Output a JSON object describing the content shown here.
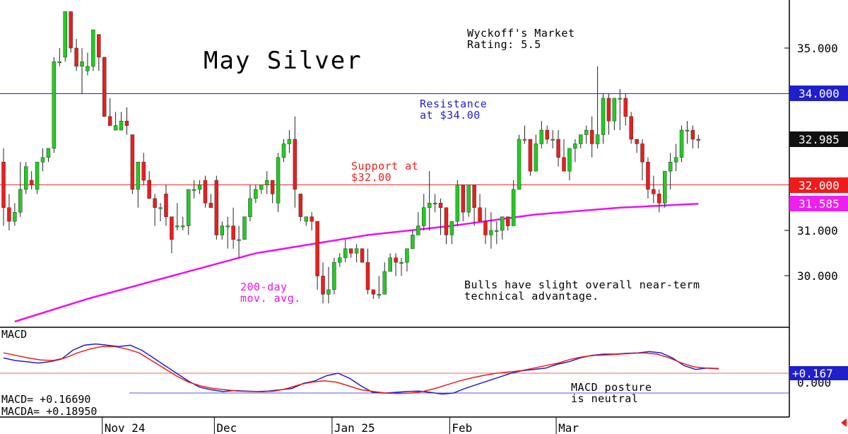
{
  "chart_data": {
    "type": "candlestick",
    "title": "May Silver",
    "rating_text": [
      "Wyckoff's Market",
      "Rating: 5.5"
    ],
    "y_ticks": [
      "35.000",
      "31.000",
      "30.000"
    ],
    "ylim": [
      29.0,
      35.9
    ],
    "x_labels": [
      {
        "label": "Nov 24",
        "index": 18
      },
      {
        "label": "Dec",
        "index": 38
      },
      {
        "label": "Jan 25",
        "index": 59
      },
      {
        "label": "Feb",
        "index": 80
      },
      {
        "label": "Mar",
        "index": 99
      }
    ],
    "levels": [
      {
        "value": 34.0,
        "label": "34.000",
        "color": "#1f1fcc",
        "box_bg": "#1f1fcc",
        "box_fg": "#ffffff"
      },
      {
        "value": 32.0,
        "label": "32.000",
        "color": "#ee3030",
        "box_bg": "#ee1c1c",
        "box_fg": "#ffffff"
      }
    ],
    "last_price": {
      "value": 32.985,
      "label": "32.985",
      "box_bg": "#111111",
      "box_fg": "#ffffff"
    },
    "ma_label_value": {
      "value": 31.585,
      "label": "31.585",
      "box_bg": "#ee20ee",
      "box_fg": "#ffffff"
    },
    "annotations": {
      "resistance": [
        "Resistance",
        "at $34.00"
      ],
      "support": [
        "Support at",
        "$32.00"
      ],
      "moving_average": [
        "200-day",
        "mov. avg."
      ],
      "outlook": [
        "Bulls have slight overall near-term",
        "technical advantage."
      ],
      "macd_posture": [
        "MACD posture",
        "is neutral"
      ]
    },
    "candles": [
      [
        32.5,
        32.8,
        31.1,
        31.5
      ],
      [
        31.5,
        31.8,
        31.0,
        31.2
      ],
      [
        31.2,
        31.6,
        31.1,
        31.4
      ],
      [
        31.4,
        32.5,
        31.3,
        31.9
      ],
      [
        31.9,
        32.5,
        31.8,
        32.4
      ],
      [
        32.1,
        32.3,
        31.9,
        32.0
      ],
      [
        31.9,
        32.5,
        31.8,
        32.5
      ],
      [
        32.5,
        32.8,
        32.3,
        32.6
      ],
      [
        32.6,
        32.8,
        32.5,
        32.8
      ],
      [
        32.8,
        34.8,
        32.7,
        34.7
      ],
      [
        34.7,
        35.0,
        34.6,
        34.7
      ],
      [
        34.8,
        35.8,
        34.7,
        35.8
      ],
      [
        35.8,
        35.8,
        34.9,
        35.0
      ],
      [
        35.0,
        35.2,
        34.5,
        34.6
      ],
      [
        34.6,
        35.0,
        34.0,
        34.7
      ],
      [
        34.5,
        34.9,
        34.4,
        34.6
      ],
      [
        34.6,
        35.4,
        34.5,
        35.4
      ],
      [
        35.3,
        35.3,
        34.5,
        34.8
      ],
      [
        34.8,
        34.8,
        33.5,
        33.5
      ],
      [
        33.5,
        33.9,
        33.3,
        33.3
      ],
      [
        33.2,
        33.6,
        33.2,
        33.3
      ],
      [
        33.2,
        33.6,
        33.2,
        33.4
      ],
      [
        33.4,
        33.7,
        33.1,
        33.3
      ],
      [
        33.1,
        33.1,
        31.8,
        31.9
      ],
      [
        31.9,
        32.5,
        31.5,
        32.5
      ],
      [
        32.5,
        32.7,
        32.0,
        32.1
      ],
      [
        32.1,
        32.3,
        31.7,
        31.7
      ],
      [
        31.7,
        31.8,
        31.1,
        31.5
      ],
      [
        31.5,
        31.6,
        31.2,
        31.5
      ],
      [
        31.8,
        32.0,
        31.1,
        31.3
      ],
      [
        31.3,
        31.3,
        30.5,
        30.8
      ],
      [
        31.1,
        31.6,
        31.0,
        31.1
      ],
      [
        31.1,
        31.3,
        31.0,
        31.1
      ],
      [
        31.1,
        31.9,
        30.9,
        31.9
      ],
      [
        31.9,
        32.1,
        31.7,
        31.9
      ],
      [
        31.9,
        32.1,
        31.8,
        32.0
      ],
      [
        32.1,
        32.2,
        31.5,
        31.6
      ],
      [
        31.6,
        31.8,
        31.5,
        31.5
      ],
      [
        32.1,
        32.2,
        30.8,
        30.9
      ],
      [
        30.9,
        31.2,
        30.8,
        31.1
      ],
      [
        31.1,
        31.3,
        30.6,
        31.1
      ],
      [
        31.1,
        31.5,
        30.6,
        30.8
      ],
      [
        30.8,
        31.1,
        30.4,
        30.8
      ],
      [
        30.8,
        31.3,
        30.8,
        31.3
      ],
      [
        31.3,
        32.0,
        31.2,
        31.7
      ],
      [
        31.7,
        32.0,
        31.6,
        31.9
      ],
      [
        31.9,
        32.0,
        31.8,
        32.0
      ],
      [
        32.0,
        32.3,
        31.8,
        32.1
      ],
      [
        32.1,
        32.1,
        31.6,
        31.8
      ],
      [
        31.6,
        32.7,
        31.4,
        32.6
      ],
      [
        32.6,
        33.0,
        32.5,
        32.9
      ],
      [
        32.9,
        33.2,
        32.7,
        33.0
      ],
      [
        33.0,
        33.5,
        31.5,
        31.9
      ],
      [
        31.8,
        31.8,
        31.2,
        31.3
      ],
      [
        31.2,
        31.3,
        31.1,
        31.3
      ],
      [
        31.3,
        31.4,
        31.0,
        31.2
      ],
      [
        31.2,
        31.2,
        29.7,
        30.0
      ],
      [
        30.0,
        30.3,
        29.4,
        29.6
      ],
      [
        29.6,
        30.2,
        29.4,
        29.7
      ],
      [
        29.7,
        30.4,
        29.6,
        30.3
      ],
      [
        30.3,
        30.5,
        30.2,
        30.4
      ],
      [
        30.4,
        30.8,
        30.3,
        30.6
      ],
      [
        30.6,
        30.6,
        30.4,
        30.5
      ],
      [
        30.5,
        30.7,
        30.3,
        30.6
      ],
      [
        30.6,
        30.6,
        30.3,
        30.3
      ],
      [
        30.3,
        30.6,
        29.6,
        29.7
      ],
      [
        29.7,
        29.7,
        29.5,
        29.6
      ],
      [
        29.6,
        30.0,
        29.5,
        29.6
      ],
      [
        29.6,
        30.3,
        29.6,
        30.1
      ],
      [
        30.1,
        30.5,
        30.1,
        30.4
      ],
      [
        30.4,
        30.5,
        30.0,
        30.3
      ],
      [
        30.3,
        30.4,
        30.0,
        30.3
      ],
      [
        30.3,
        30.6,
        30.1,
        30.6
      ],
      [
        30.6,
        31.0,
        30.6,
        30.9
      ],
      [
        30.9,
        31.4,
        30.9,
        31.1
      ],
      [
        31.1,
        31.8,
        31.0,
        31.5
      ],
      [
        31.5,
        32.3,
        31.0,
        31.6
      ],
      [
        31.6,
        31.8,
        31.4,
        31.6
      ],
      [
        31.6,
        31.7,
        30.9,
        31.5
      ],
      [
        31.5,
        31.5,
        30.7,
        30.9
      ]
    ],
    "candles_tail": [
      [
        30.9,
        31.1,
        30.7,
        31.2
      ],
      [
        31.2,
        32.1,
        31.1,
        32.0
      ],
      [
        32.0,
        32.0,
        31.2,
        31.4
      ],
      [
        31.4,
        32.0,
        31.3,
        32.0
      ],
      [
        32.0,
        32.0,
        31.1,
        31.5
      ],
      [
        31.5,
        31.8,
        31.2,
        31.2
      ],
      [
        31.2,
        31.5,
        30.7,
        30.9
      ],
      [
        30.9,
        31.4,
        30.6,
        31.0
      ],
      [
        31.0,
        31.2,
        30.7,
        31.0
      ],
      [
        31.0,
        31.3,
        30.8,
        31.3
      ],
      [
        31.3,
        31.3,
        31.0,
        31.1
      ],
      [
        31.1,
        32.1,
        31.1,
        31.9
      ],
      [
        31.9,
        33.1,
        31.9,
        33.0
      ],
      [
        33.0,
        33.3,
        32.9,
        33.0
      ],
      [
        33.0,
        33.0,
        32.2,
        32.3
      ],
      [
        32.3,
        33.1,
        32.3,
        32.9
      ],
      [
        32.9,
        33.4,
        32.8,
        33.2
      ],
      [
        33.2,
        33.3,
        32.9,
        33.0
      ],
      [
        33.0,
        33.2,
        32.8,
        33.0
      ],
      [
        33.0,
        33.2,
        32.4,
        32.6
      ],
      [
        32.6,
        33.0,
        32.3,
        32.3
      ],
      [
        32.3,
        32.8,
        32.1,
        32.8
      ],
      [
        32.8,
        33.0,
        32.5,
        32.9
      ],
      [
        32.9,
        33.1,
        32.8,
        33.1
      ]
    ],
    "candles_end": [
      [
        33.1,
        33.3,
        32.9,
        33.2
      ],
      [
        33.2,
        33.5,
        32.6,
        32.9
      ],
      [
        32.9,
        34.6,
        32.8,
        33.1
      ],
      [
        33.1,
        34.0,
        32.9,
        33.9
      ],
      [
        33.9,
        34.0,
        33.1,
        33.4
      ],
      [
        33.4,
        33.9,
        33.2,
        33.9
      ],
      [
        33.9,
        34.1,
        33.2,
        33.9
      ],
      [
        33.9,
        34.0,
        33.3,
        33.5
      ],
      [
        33.5,
        33.6,
        32.9,
        33.0
      ],
      [
        33.0,
        33.0,
        32.7,
        32.9
      ],
      [
        32.9,
        33.0,
        32.1,
        32.5
      ],
      [
        32.5,
        32.6,
        31.7,
        31.9
      ],
      [
        31.9,
        32.2,
        31.6,
        31.8
      ],
      [
        31.8,
        31.9,
        31.4,
        31.6
      ],
      [
        31.6,
        32.2,
        31.5,
        32.3
      ],
      [
        32.3,
        32.7,
        31.9,
        32.5
      ],
      [
        32.5,
        32.9,
        32.3,
        32.6
      ],
      [
        32.6,
        33.3,
        32.5,
        33.2
      ],
      [
        33.2,
        33.4,
        32.9,
        33.2
      ],
      [
        33.2,
        33.3,
        32.8,
        33.0
      ],
      [
        33.0,
        33.1,
        32.8,
        32.985
      ]
    ],
    "ma200": [
      {
        "i": 2,
        "v": 29.0
      },
      {
        "i": 15,
        "v": 29.5
      },
      {
        "i": 30,
        "v": 30.0
      },
      {
        "i": 45,
        "v": 30.5
      },
      {
        "i": 55,
        "v": 30.7
      },
      {
        "i": 65,
        "v": 30.9
      },
      {
        "i": 80,
        "v": 31.1
      },
      {
        "i": 95,
        "v": 31.35
      },
      {
        "i": 110,
        "v": 31.5
      },
      {
        "i": 124,
        "v": 31.585
      }
    ],
    "macd_panel": {
      "label": "MACD",
      "readout_macd": "MACD=   +0.16690",
      "readout_macda": "MACDA= +0.18950",
      "current_box": "+0.167",
      "zero_tick": "0.000",
      "macd_line": [
        0.6,
        0.5,
        0.45,
        0.4,
        0.45,
        0.55,
        0.9,
        1.1,
        1.15,
        1.1,
        1.05,
        1.1,
        0.9,
        0.6,
        0.3,
        0.0,
        -0.3,
        -0.55,
        -0.65,
        -0.72,
        -0.68,
        -0.7,
        -0.72,
        -0.7,
        -0.65,
        -0.6,
        -0.4,
        -0.3,
        -0.1,
        0.0,
        -0.2,
        -0.5,
        -0.75,
        -0.78,
        -0.75,
        -0.72,
        -0.7,
        -0.75,
        -0.82,
        -0.78,
        -0.6,
        -0.45,
        -0.3,
        -0.15,
        0.0,
        0.1,
        0.15,
        0.2,
        0.35,
        0.45,
        0.6,
        0.7,
        0.75,
        0.75,
        0.78,
        0.8,
        0.85,
        0.8,
        0.6,
        0.3,
        0.15,
        0.2,
        0.17
      ],
      "signal_line": [
        0.8,
        0.7,
        0.6,
        0.52,
        0.5,
        0.6,
        0.8,
        0.95,
        1.05,
        1.05,
        0.95,
        0.8,
        0.5,
        0.2,
        -0.1,
        -0.35,
        -0.5,
        -0.6,
        -0.65,
        -0.7,
        -0.72,
        -0.73,
        -0.7,
        -0.6,
        -0.45,
        -0.35,
        -0.3,
        -0.35,
        -0.5,
        -0.65,
        -0.72,
        -0.78,
        -0.8,
        -0.78,
        -0.72,
        -0.6,
        -0.45,
        -0.3,
        -0.18,
        -0.08,
        0.0,
        0.05,
        0.1,
        0.2,
        0.3,
        0.4,
        0.55,
        0.65,
        0.7,
        0.72,
        0.75,
        0.78,
        0.8,
        0.75,
        0.6,
        0.4,
        0.25,
        0.2,
        0.19
      ]
    }
  }
}
